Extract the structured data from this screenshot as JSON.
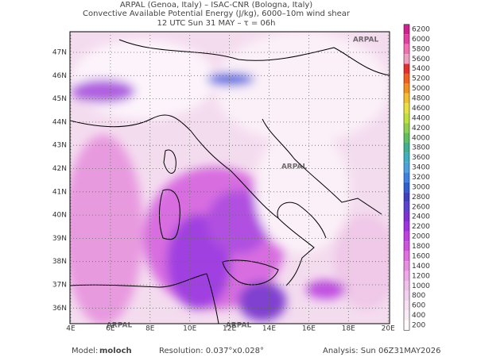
{
  "header": {
    "lines": [
      "ARPAL (Genoa, Italy)  –  ISAC-CNR (Bologna, Italy)",
      "Convective Available Potential Energy (J/kg), 6000–10m wind shear",
      "12 UTC Sun 31 MAY  –  τ = 06h"
    ]
  },
  "map": {
    "lat_labels": [
      "47N",
      "46N",
      "45N",
      "44N",
      "43N",
      "42N",
      "41N",
      "40N",
      "39N",
      "38N",
      "37N",
      "36N"
    ],
    "lon_labels": [
      "4E",
      "6E",
      "8E",
      "10E",
      "12E",
      "14E",
      "16E",
      "18E",
      "20E"
    ],
    "watermark": "ARPAL"
  },
  "colorbar": {
    "labels": [
      "6200",
      "6000",
      "5800",
      "5600",
      "5400",
      "5200",
      "5000",
      "4800",
      "4600",
      "4400",
      "4200",
      "4000",
      "3800",
      "3600",
      "3400",
      "3200",
      "3000",
      "2800",
      "2600",
      "2400",
      "2200",
      "2000",
      "1800",
      "1600",
      "1400",
      "1200",
      "1000",
      "800",
      "600",
      "400",
      "200"
    ],
    "colors": [
      "#d02090",
      "#e040a0",
      "#f070b0",
      "#f0a0c0",
      "#e03030",
      "#f06020",
      "#f09020",
      "#f0c030",
      "#e8e040",
      "#c0e040",
      "#90d050",
      "#60c060",
      "#40b090",
      "#40b0c0",
      "#50a0e0",
      "#4080e0",
      "#3060d0",
      "#4040c0",
      "#6040d0",
      "#8030d0",
      "#a030e0",
      "#c040e0",
      "#d050e0",
      "#e070e0",
      "#e890e0",
      "#f0a8e8",
      "#f0c0ec",
      "#f4d0f0",
      "#f6e0f2",
      "#f8ecf6",
      "#fdfafc"
    ]
  },
  "footer": {
    "model_label": "Model:",
    "model": "moloch",
    "resolution": "Resolution: 0.037°x0.028°",
    "analysis": "Analysis: Sun 06Z31MAY2026"
  }
}
